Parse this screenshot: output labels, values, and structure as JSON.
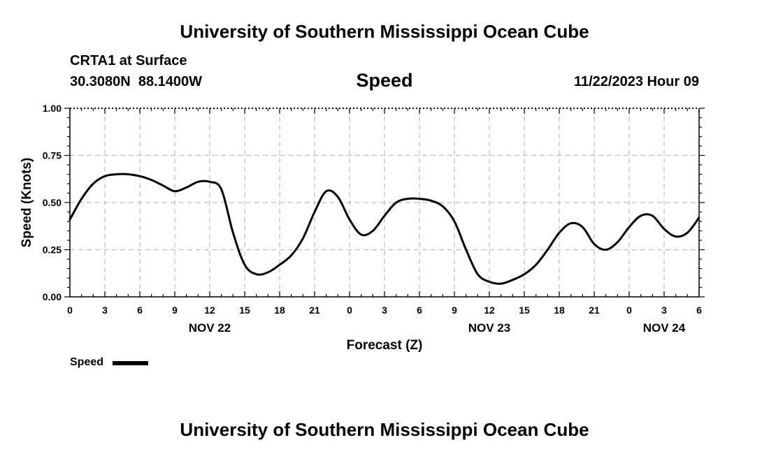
{
  "header": {
    "title": "University of Southern Mississippi Ocean Cube",
    "station": "CRTA1 at Surface",
    "coords": "30.3080N  88.1400W",
    "timestamp": "11/22/2023 Hour 09"
  },
  "footer": {
    "title": "University of Southern Mississippi Ocean Cube"
  },
  "legend": {
    "label": "Speed",
    "color": "#000000"
  },
  "chart_data": {
    "type": "line",
    "title": "Speed",
    "xlabel": "Forecast (Z)",
    "ylabel": "Speed (Knots)",
    "xlim": [
      0,
      54
    ],
    "ylim": [
      0,
      1
    ],
    "grid": true,
    "x_tick_labels": [
      "0",
      "3",
      "6",
      "9",
      "12",
      "15",
      "18",
      "21",
      "0",
      "3",
      "6",
      "9",
      "12",
      "15",
      "18",
      "21",
      "0",
      "3",
      "6"
    ],
    "y_tick_labels": [
      "0.00",
      "0.25",
      "0.50",
      "0.75",
      "1.00"
    ],
    "date_labels": [
      {
        "hour": 12,
        "label": "NOV 22"
      },
      {
        "hour": 36,
        "label": "NOV 23"
      },
      {
        "hour": 51,
        "label": "NOV 24"
      }
    ],
    "series": [
      {
        "name": "Speed",
        "color": "#000000",
        "x": [
          0,
          1,
          2,
          3,
          4,
          5,
          6,
          7,
          8,
          9,
          10,
          11,
          12,
          13,
          14,
          15,
          16,
          17,
          18,
          19,
          20,
          21,
          22,
          23,
          24,
          25,
          26,
          27,
          28,
          29,
          30,
          31,
          32,
          33,
          34,
          35,
          36,
          37,
          38,
          39,
          40,
          41,
          42,
          43,
          44,
          45,
          46,
          47,
          48,
          49,
          50,
          51,
          52,
          53,
          54
        ],
        "values": [
          0.41,
          0.52,
          0.6,
          0.64,
          0.65,
          0.65,
          0.64,
          0.62,
          0.59,
          0.56,
          0.58,
          0.61,
          0.61,
          0.57,
          0.34,
          0.17,
          0.12,
          0.13,
          0.17,
          0.22,
          0.31,
          0.45,
          0.56,
          0.53,
          0.41,
          0.33,
          0.35,
          0.43,
          0.5,
          0.52,
          0.52,
          0.51,
          0.48,
          0.4,
          0.25,
          0.12,
          0.08,
          0.07,
          0.09,
          0.12,
          0.17,
          0.25,
          0.34,
          0.39,
          0.37,
          0.28,
          0.25,
          0.29,
          0.37,
          0.43,
          0.43,
          0.36,
          0.32,
          0.34,
          0.42
        ]
      }
    ]
  }
}
